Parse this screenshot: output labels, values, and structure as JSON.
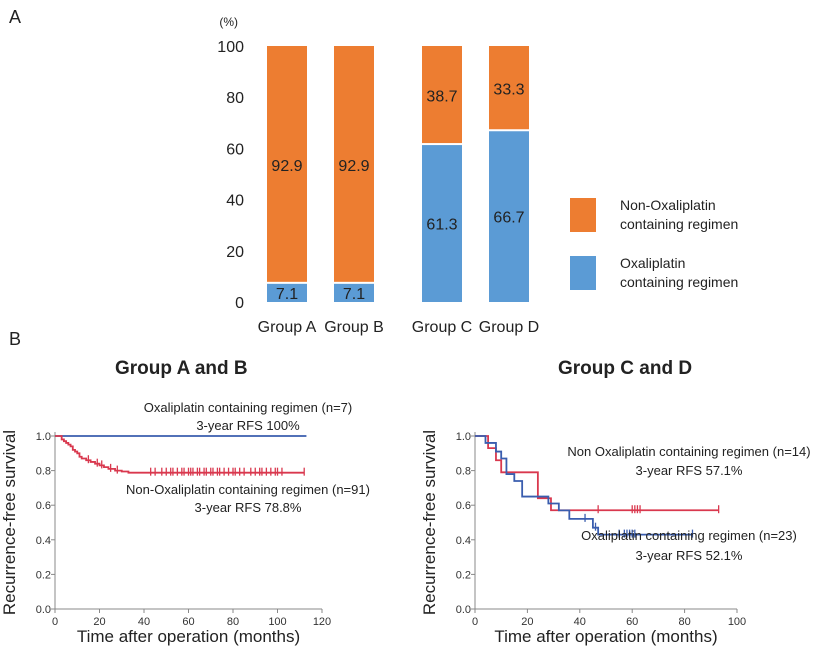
{
  "panels": {
    "a": "A",
    "b": "B"
  },
  "colors": {
    "orange": "#ED7D31",
    "blue": "#5B9BD5",
    "km_red": "#D9384E",
    "km_blue": "#3A5DAE"
  },
  "chart_data": [
    {
      "type": "bar",
      "stacked": true,
      "ylim": [
        0,
        100
      ],
      "yticks": [
        "0",
        "20",
        "40",
        "60",
        "80",
        "100"
      ],
      "yunit": "(%)",
      "categories": [
        "Group A",
        "Group B",
        "Group C",
        "Group D"
      ],
      "series": [
        {
          "name": "Oxaliplatin containing regimen",
          "values": [
            7.1,
            7.1,
            61.3,
            66.7
          ],
          "labels": [
            "7.1",
            "7.1",
            "61.3",
            "66.7"
          ],
          "color": "#5B9BD5"
        },
        {
          "name": "Non-Oxaliplatin containing regimen",
          "values": [
            92.9,
            92.9,
            38.7,
            33.3
          ],
          "labels": [
            "92.9",
            "92.9",
            "38.7",
            "33.3"
          ],
          "color": "#ED7D31"
        }
      ],
      "legend": [
        {
          "text": "Non-Oxaliplatin\ncontaining regimen",
          "color": "#ED7D31"
        },
        {
          "text": "Oxaliplatin\ncontaining regimen",
          "color": "#5B9BD5"
        }
      ],
      "legend_position": "right"
    },
    {
      "type": "line",
      "title": "Group A and B",
      "xlabel": "Time after operation (months)",
      "ylabel": "Recurrence-free  survival",
      "xlim": [
        0,
        120
      ],
      "ylim": [
        0,
        1.0
      ],
      "xticks": [
        "0",
        "20",
        "40",
        "60",
        "80",
        "100",
        "120"
      ],
      "yticks": [
        "0.0",
        "0.2",
        "0.4",
        "0.6",
        "0.8",
        "1.0"
      ],
      "series": [
        {
          "name": "Oxaliplatin containing regimen (n=7)",
          "note": "3-year RFS 100%",
          "color": "#3A5DAE",
          "x": [
            0,
            113
          ],
          "y": [
            1.0,
            1.0
          ],
          "censored": []
        },
        {
          "name": "Non-Oxaliplatin containing regimen (n=91)",
          "note": "3-year RFS 78.8%",
          "color": "#D9384E",
          "x": [
            0,
            3,
            4,
            5,
            6,
            7,
            8,
            9,
            10,
            11,
            12,
            14,
            16,
            18,
            20,
            22,
            24,
            27,
            30,
            33,
            112
          ],
          "y": [
            1.0,
            0.98,
            0.97,
            0.96,
            0.95,
            0.94,
            0.92,
            0.91,
            0.9,
            0.88,
            0.87,
            0.86,
            0.85,
            0.84,
            0.83,
            0.82,
            0.81,
            0.8,
            0.795,
            0.788,
            0.788
          ],
          "censored": [
            15,
            19,
            21,
            25,
            28,
            43,
            45,
            48,
            50,
            52,
            53,
            55,
            57,
            58,
            60,
            61,
            62,
            64,
            65,
            67,
            68,
            70,
            71,
            73,
            74,
            76,
            78,
            80,
            81,
            83,
            85,
            88,
            90,
            92,
            93,
            95,
            97,
            99,
            100,
            102,
            112
          ]
        }
      ]
    },
    {
      "type": "line",
      "title": "Group C and D",
      "xlabel": "Time after operation (months)",
      "ylabel": "Recurrence-free  survival",
      "xlim": [
        0,
        100
      ],
      "ylim": [
        0,
        1.0
      ],
      "xticks": [
        "0",
        "20",
        "40",
        "60",
        "80",
        "100"
      ],
      "yticks": [
        "0.0",
        "0.2",
        "0.4",
        "0.6",
        "0.8",
        "1.0"
      ],
      "series": [
        {
          "name": "Non Oxaliplatin containing regimen (n=14)",
          "note": "3-year RFS 57.1%",
          "color": "#D9384E",
          "x": [
            0,
            5,
            8,
            10,
            12,
            24,
            29,
            93
          ],
          "y": [
            1.0,
            0.93,
            0.86,
            0.79,
            0.79,
            0.64,
            0.571,
            0.571
          ],
          "censored": [
            47,
            60,
            61,
            62,
            63,
            93
          ]
        },
        {
          "name": "Oxaliplatin containing regimen (n=23)",
          "note": "3-year RFS 52.1%",
          "color": "#3A5DAE",
          "x": [
            0,
            4,
            8,
            10,
            12,
            15,
            18,
            28,
            32,
            36,
            45,
            47,
            83
          ],
          "y": [
            1.0,
            0.96,
            0.91,
            0.87,
            0.78,
            0.74,
            0.65,
            0.61,
            0.57,
            0.521,
            0.47,
            0.43,
            0.43
          ],
          "censored": [
            42,
            46,
            55,
            57,
            58,
            59,
            60,
            61,
            83
          ]
        }
      ]
    }
  ]
}
